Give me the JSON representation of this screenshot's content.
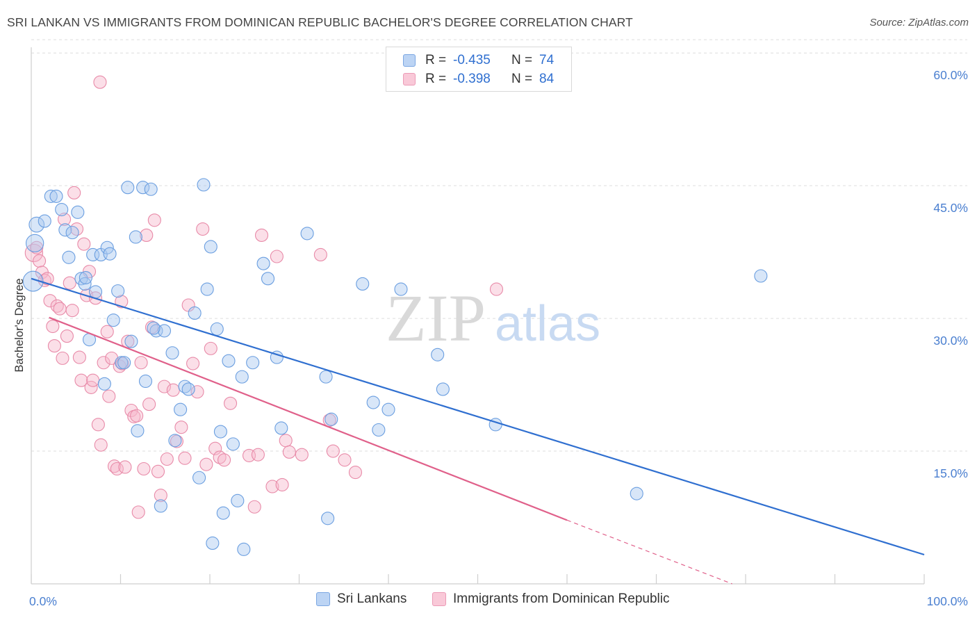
{
  "title": "SRI LANKAN VS IMMIGRANTS FROM DOMINICAN REPUBLIC BACHELOR'S DEGREE CORRELATION CHART",
  "source": "Source: ZipAtlas.com",
  "watermark": {
    "zip": "ZIP",
    "atlas": "atlas"
  },
  "legend": {
    "rows": [
      {
        "r_label": "R =",
        "r_value": "-0.435",
        "n_label": "N =",
        "n_value": "74"
      },
      {
        "r_label": "R =",
        "r_value": "-0.398",
        "n_label": "N =",
        "n_value": "84"
      }
    ]
  },
  "colors": {
    "blue_fill": "#a8c8f0",
    "blue_stroke": "#6a9ee0",
    "blue_line": "#2f6fd0",
    "pink_fill": "#f6b8cc",
    "pink_stroke": "#e88aa8",
    "pink_line": "#e0608a",
    "grid": "#dddddd",
    "tick_text": "#4a7fd0"
  },
  "chart_data": {
    "type": "scatter",
    "title": "SRI LANKAN VS IMMIGRANTS FROM DOMINICAN REPUBLIC BACHELOR'S DEGREE CORRELATION CHART",
    "xlabel": "",
    "ylabel": "Bachelor's Degree",
    "xlim": [
      0,
      100
    ],
    "ylim": [
      0,
      62
    ],
    "x_tick_labels": [
      "0.0%",
      "100.0%"
    ],
    "y_ticks": [
      15,
      30,
      45,
      60
    ],
    "y_tick_labels": [
      "15.0%",
      "30.0%",
      "45.0%",
      "60.0%"
    ],
    "grid": true,
    "legend_position": "bottom",
    "series": [
      {
        "name": "Sri Lankans",
        "color": "#6a9ee0",
        "trend": {
          "x0": 0,
          "y0": 34.5,
          "x1": 100,
          "y1": 3.3
        },
        "points": [
          [
            0.2,
            34.2,
            1.6
          ],
          [
            0.4,
            38.5,
            1.4
          ],
          [
            0.6,
            40.6,
            1.2
          ],
          [
            1.5,
            41.0,
            1.0
          ],
          [
            2.2,
            43.8,
            1.0
          ],
          [
            2.8,
            43.8,
            1.0
          ],
          [
            3.4,
            42.3,
            1.0
          ],
          [
            3.8,
            40.0,
            1.0
          ],
          [
            4.2,
            36.9,
            1.0
          ],
          [
            4.6,
            39.7,
            1.0
          ],
          [
            5.2,
            42.0,
            1.0
          ],
          [
            5.6,
            34.5,
            1.0
          ],
          [
            6.0,
            33.9,
            1.0
          ],
          [
            6.5,
            27.6,
            1.0
          ],
          [
            6.9,
            37.2,
            1.0
          ],
          [
            7.2,
            33.0,
            1.0
          ],
          [
            7.8,
            37.2,
            1.0
          ],
          [
            8.2,
            22.6,
            1.0
          ],
          [
            8.5,
            38.0,
            1.0
          ],
          [
            8.8,
            37.3,
            1.0
          ],
          [
            9.2,
            29.8,
            1.0
          ],
          [
            9.7,
            33.1,
            1.0
          ],
          [
            10.1,
            25.0,
            1.0
          ],
          [
            10.4,
            25.0,
            1.0
          ],
          [
            10.8,
            44.8,
            1.0
          ],
          [
            11.2,
            27.4,
            1.0
          ],
          [
            11.7,
            39.2,
            1.0
          ],
          [
            11.9,
            17.3,
            1.0
          ],
          [
            12.5,
            44.8,
            1.0
          ],
          [
            12.8,
            22.9,
            1.0
          ],
          [
            13.4,
            44.6,
            1.0
          ],
          [
            14.0,
            28.6,
            1.0
          ],
          [
            14.5,
            8.8,
            1.0
          ],
          [
            14.9,
            28.6,
            1.0
          ],
          [
            15.8,
            26.1,
            1.0
          ],
          [
            16.1,
            16.2,
            1.0
          ],
          [
            16.7,
            19.7,
            1.0
          ],
          [
            17.2,
            22.3,
            1.0
          ],
          [
            17.6,
            22.0,
            1.0
          ],
          [
            18.3,
            30.6,
            1.0
          ],
          [
            18.8,
            12.0,
            1.0
          ],
          [
            19.3,
            45.1,
            1.0
          ],
          [
            19.7,
            33.3,
            1.0
          ],
          [
            20.1,
            38.1,
            1.0
          ],
          [
            20.8,
            28.8,
            1.0
          ],
          [
            21.2,
            17.2,
            1.0
          ],
          [
            21.5,
            8.0,
            1.0
          ],
          [
            22.1,
            25.2,
            1.0
          ],
          [
            22.6,
            15.8,
            1.0
          ],
          [
            23.1,
            9.4,
            1.0
          ],
          [
            23.6,
            23.4,
            1.0
          ],
          [
            23.8,
            3.9,
            1.0
          ],
          [
            24.8,
            25.0,
            1.0
          ],
          [
            26.0,
            36.2,
            1.0
          ],
          [
            26.5,
            34.5,
            1.0
          ],
          [
            27.5,
            25.6,
            1.0
          ],
          [
            28.0,
            17.6,
            1.0
          ],
          [
            20.3,
            4.6,
            1.0
          ],
          [
            30.9,
            39.6,
            1.0
          ],
          [
            33.0,
            23.4,
            1.0
          ],
          [
            33.2,
            7.4,
            1.0
          ],
          [
            33.6,
            18.6,
            1.0
          ],
          [
            37.1,
            33.9,
            1.0
          ],
          [
            38.3,
            20.5,
            1.0
          ],
          [
            38.9,
            17.4,
            1.0
          ],
          [
            40.0,
            19.7,
            1.0
          ],
          [
            41.4,
            33.3,
            1.0
          ],
          [
            45.5,
            25.9,
            1.0
          ],
          [
            46.1,
            22.0,
            1.0
          ],
          [
            52.0,
            18.0,
            1.0
          ],
          [
            67.8,
            10.2,
            1.0
          ],
          [
            81.7,
            34.8,
            1.0
          ],
          [
            13.7,
            28.9,
            1.0
          ],
          [
            6.1,
            34.6,
            1.0
          ]
        ]
      },
      {
        "name": "Immigrants from Dominican Republic",
        "color": "#e88aa8",
        "trend": {
          "x0": 2.0,
          "y0": 30.1,
          "x1": 60.0,
          "y1": 7.2
        },
        "trend_dashed": {
          "x0": 60.0,
          "y0": 7.2,
          "x1": 78.5,
          "y1": 0.0
        },
        "points": [
          [
            0.3,
            37.4,
            1.4
          ],
          [
            0.6,
            38.0,
            1.0
          ],
          [
            0.9,
            36.5,
            1.0
          ],
          [
            1.2,
            35.2,
            1.0
          ],
          [
            1.5,
            34.3,
            1.0
          ],
          [
            1.8,
            34.5,
            1.0
          ],
          [
            2.1,
            32.0,
            1.0
          ],
          [
            2.4,
            29.1,
            1.0
          ],
          [
            2.6,
            26.9,
            1.0
          ],
          [
            2.9,
            31.4,
            1.0
          ],
          [
            3.2,
            31.1,
            1.0
          ],
          [
            3.5,
            25.5,
            1.0
          ],
          [
            3.7,
            41.2,
            1.0
          ],
          [
            4.0,
            28.0,
            1.0
          ],
          [
            4.3,
            34.0,
            1.0
          ],
          [
            4.6,
            30.9,
            1.0
          ],
          [
            4.8,
            44.2,
            1.0
          ],
          [
            5.1,
            40.1,
            1.0
          ],
          [
            5.4,
            25.6,
            1.0
          ],
          [
            5.6,
            23.0,
            1.0
          ],
          [
            5.9,
            38.4,
            1.0
          ],
          [
            6.2,
            32.6,
            1.0
          ],
          [
            6.5,
            35.3,
            1.0
          ],
          [
            6.7,
            22.2,
            1.0
          ],
          [
            6.9,
            23.0,
            1.0
          ],
          [
            7.2,
            32.3,
            1.0
          ],
          [
            7.5,
            18.0,
            1.0
          ],
          [
            7.8,
            15.7,
            1.0
          ],
          [
            8.1,
            25.0,
            1.0
          ],
          [
            8.5,
            28.5,
            1.0
          ],
          [
            8.7,
            21.2,
            1.0
          ],
          [
            9.0,
            25.5,
            1.0
          ],
          [
            9.3,
            13.3,
            1.0
          ],
          [
            9.6,
            13.0,
            1.0
          ],
          [
            9.9,
            24.6,
            1.0
          ],
          [
            10.2,
            24.9,
            1.0
          ],
          [
            10.5,
            13.2,
            1.0
          ],
          [
            10.8,
            27.4,
            1.0
          ],
          [
            11.2,
            19.6,
            1.0
          ],
          [
            11.5,
            18.9,
            1.0
          ],
          [
            11.8,
            19.0,
            1.0
          ],
          [
            12.0,
            8.1,
            1.0
          ],
          [
            12.3,
            25.0,
            1.0
          ],
          [
            12.6,
            13.0,
            1.0
          ],
          [
            12.9,
            39.4,
            1.0
          ],
          [
            13.2,
            20.3,
            1.0
          ],
          [
            13.5,
            29.0,
            1.0
          ],
          [
            13.8,
            41.1,
            1.0
          ],
          [
            14.2,
            12.7,
            1.0
          ],
          [
            14.5,
            10.0,
            1.0
          ],
          [
            14.9,
            22.3,
            1.0
          ],
          [
            15.2,
            14.1,
            1.0
          ],
          [
            15.9,
            21.9,
            1.0
          ],
          [
            16.3,
            16.1,
            1.0
          ],
          [
            16.8,
            17.7,
            1.0
          ],
          [
            17.2,
            14.2,
            1.0
          ],
          [
            17.6,
            31.5,
            1.0
          ],
          [
            18.1,
            24.9,
            1.0
          ],
          [
            18.6,
            21.7,
            1.0
          ],
          [
            19.2,
            40.1,
            1.0
          ],
          [
            19.6,
            13.5,
            1.0
          ],
          [
            20.1,
            26.6,
            1.0
          ],
          [
            20.6,
            15.3,
            1.0
          ],
          [
            21.1,
            14.3,
            1.0
          ],
          [
            21.6,
            14.0,
            1.0
          ],
          [
            22.3,
            20.4,
            1.0
          ],
          [
            24.4,
            14.5,
            1.0
          ],
          [
            25.0,
            8.7,
            1.0
          ],
          [
            25.4,
            14.6,
            1.0
          ],
          [
            25.8,
            39.4,
            1.0
          ],
          [
            27.0,
            11.0,
            1.0
          ],
          [
            27.5,
            37.0,
            1.0
          ],
          [
            28.1,
            11.2,
            1.0
          ],
          [
            28.5,
            16.2,
            1.0
          ],
          [
            28.9,
            14.9,
            1.0
          ],
          [
            30.3,
            14.6,
            1.0
          ],
          [
            33.4,
            18.5,
            1.0
          ],
          [
            33.8,
            15.0,
            1.0
          ],
          [
            35.1,
            14.0,
            1.0
          ],
          [
            36.3,
            12.6,
            1.0
          ],
          [
            52.1,
            33.3,
            1.0
          ],
          [
            7.7,
            56.7,
            1.0
          ],
          [
            32.4,
            37.2,
            1.0
          ],
          [
            10.1,
            31.9,
            1.0
          ]
        ]
      }
    ]
  },
  "bottom_legend": {
    "items": [
      "Sri Lankans",
      "Immigrants from Dominican Republic"
    ]
  }
}
